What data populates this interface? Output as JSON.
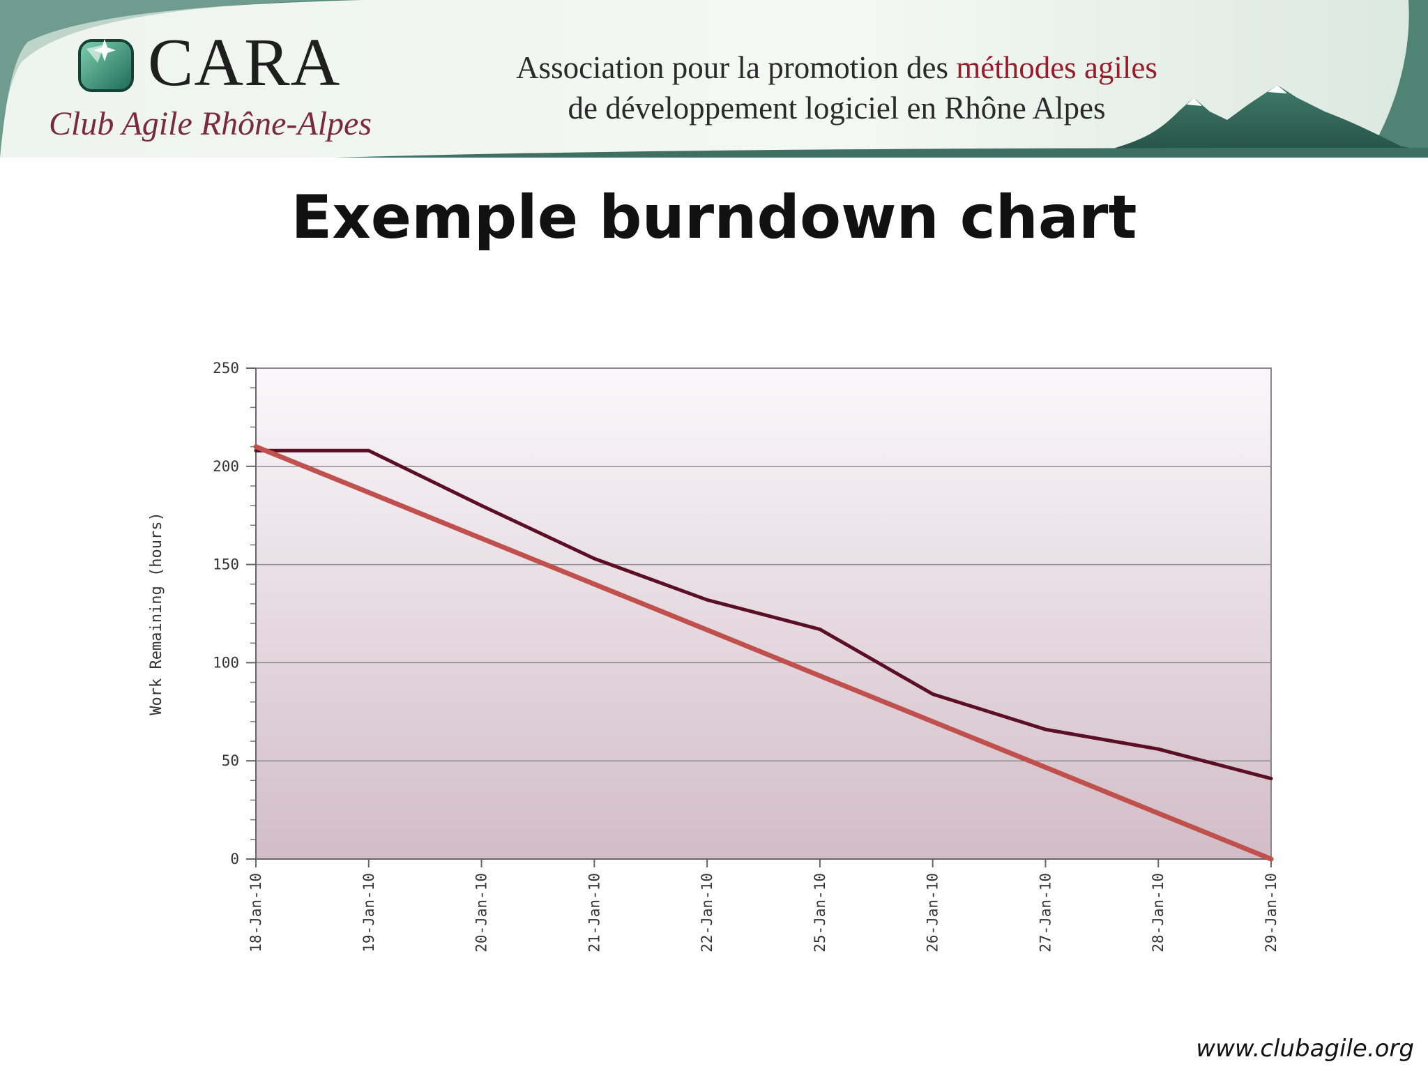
{
  "header": {
    "logo_name": "CARA",
    "logo_subtitle": "Club Agile Rhône-Alpes",
    "tagline_line1_start": "Association pour la promotion des ",
    "tagline_line1_accent": "méthodes agiles",
    "tagline_line2": "de développement logiciel en Rhône Alpes",
    "icon": "gem-icon"
  },
  "title": "Exemple burndown chart",
  "footer": {
    "url": "www.clubagile.org"
  },
  "colors": {
    "actual_line": "#5a0f25",
    "ideal_line": "#c0504d",
    "plot_bg_top": "#faf8fa",
    "plot_bg_bottom": "#d2bdc6",
    "accent_text": "#9b1b2b"
  },
  "chart_data": {
    "type": "line",
    "title": "",
    "xlabel": "",
    "ylabel": "Work Remaining (hours)",
    "ylim": [
      0,
      250
    ],
    "yticks": [
      0,
      50,
      100,
      150,
      200,
      250
    ],
    "grid": true,
    "categories": [
      "18-Jan-10",
      "19-Jan-10",
      "20-Jan-10",
      "21-Jan-10",
      "22-Jan-10",
      "25-Jan-10",
      "26-Jan-10",
      "27-Jan-10",
      "28-Jan-10",
      "29-Jan-10"
    ],
    "series": [
      {
        "values": [
          208,
          208,
          180,
          153,
          132,
          117,
          84,
          66,
          56,
          41
        ]
      },
      {
        "values": [
          210,
          186.7,
          163.3,
          140,
          116.7,
          93.3,
          70,
          46.7,
          23.3,
          0
        ]
      }
    ]
  }
}
